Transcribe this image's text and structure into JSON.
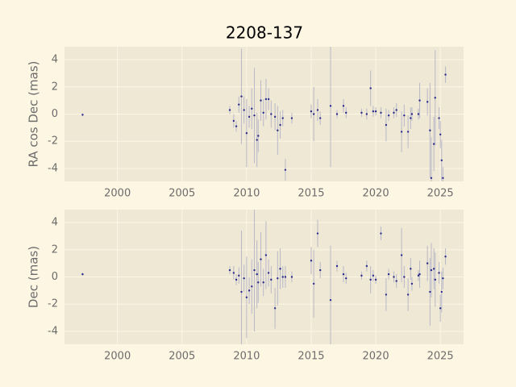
{
  "chart_data": [
    {
      "type": "scatter",
      "title": "2208-137",
      "ylabel": "RA cos Dec (mas)",
      "xlim": [
        1995.9,
        2026.8
      ],
      "ylim": [
        -4.95,
        4.95
      ],
      "xticks": [
        2000,
        2005,
        2010,
        2015,
        2020,
        2025
      ],
      "yticks": [
        -4,
        -2,
        0,
        2,
        4
      ],
      "grid": true,
      "series": [
        {
          "color": "#2b2b8c",
          "error_color": "#b8b8c8",
          "x": [
            1997.3,
            2008.7,
            2009.0,
            2009.2,
            2009.4,
            2009.6,
            2009.8,
            2010.0,
            2010.2,
            2010.4,
            2010.6,
            2010.8,
            2010.9,
            2011.1,
            2011.3,
            2011.5,
            2011.7,
            2011.9,
            2012.2,
            2012.4,
            2012.6,
            2012.8,
            2013.0,
            2013.5,
            2015.0,
            2015.2,
            2015.5,
            2015.7,
            2016.5,
            2017.0,
            2017.5,
            2017.7,
            2018.9,
            2019.3,
            2019.6,
            2019.8,
            2020.0,
            2020.4,
            2020.8,
            2021.0,
            2021.4,
            2021.6,
            2022.0,
            2022.2,
            2022.5,
            2022.7,
            2022.8,
            2023.3,
            2023.4,
            2024.0,
            2024.2,
            2024.3,
            2024.5,
            2024.6,
            2024.9,
            2025.0,
            2025.1,
            2025.2,
            2025.4
          ],
          "values": [
            -0.05,
            0.3,
            -0.5,
            -0.9,
            0.7,
            1.3,
            0.3,
            -1.4,
            -0.2,
            0.4,
            -0.1,
            -1.9,
            -1.6,
            1.0,
            0.1,
            1.1,
            1.1,
            0.0,
            -0.2,
            -1.2,
            -0.8,
            -0.3,
            -4.1,
            -0.3,
            0.2,
            0.0,
            0.3,
            -0.3,
            0.6,
            0.0,
            0.6,
            0.1,
            0.1,
            0.0,
            1.9,
            0.2,
            0.2,
            0.1,
            -0.8,
            -0.1,
            0.1,
            0.3,
            -1.3,
            -0.1,
            -1.3,
            -0.3,
            0.0,
            0.0,
            1.0,
            0.9,
            -1.2,
            -4.7,
            -2.2,
            1.2,
            -0.3,
            -1.5,
            -3.4,
            -4.7,
            2.9
          ],
          "errors": [
            0.1,
            0.3,
            0.5,
            0.4,
            0.6,
            3.5,
            1.0,
            2.5,
            0.8,
            1.5,
            3.5,
            2.0,
            1.2,
            1.5,
            1.0,
            1.5,
            0.8,
            1.0,
            1.0,
            1.8,
            1.0,
            0.6,
            0.8,
            0.4,
            0.5,
            2.0,
            0.8,
            0.5,
            4.5,
            0.3,
            0.5,
            0.4,
            0.3,
            0.4,
            1.3,
            0.4,
            0.3,
            0.4,
            1.2,
            0.4,
            0.4,
            0.5,
            1.5,
            0.8,
            1.2,
            0.8,
            0.5,
            0.4,
            1.3,
            1.0,
            3.5,
            3.0,
            2.0,
            3.5,
            0.8,
            1.0,
            1.5,
            0.8,
            0.6
          ]
        }
      ]
    },
    {
      "type": "scatter",
      "ylabel": "Dec (mas)",
      "xlim": [
        1995.9,
        2026.8
      ],
      "ylim": [
        -4.95,
        4.95
      ],
      "xticks": [
        2000,
        2005,
        2010,
        2015,
        2020,
        2025
      ],
      "yticks": [
        -4,
        -2,
        0,
        2,
        4
      ],
      "grid": true,
      "series": [
        {
          "color": "#2b2b8c",
          "error_color": "#b8b8c8",
          "x": [
            1997.3,
            2008.7,
            2009.0,
            2009.2,
            2009.4,
            2009.6,
            2009.8,
            2010.0,
            2010.2,
            2010.4,
            2010.6,
            2010.8,
            2010.9,
            2011.1,
            2011.3,
            2011.5,
            2011.7,
            2011.9,
            2012.2,
            2012.4,
            2012.6,
            2012.8,
            2013.0,
            2013.5,
            2015.0,
            2015.2,
            2015.5,
            2015.7,
            2016.5,
            2017.0,
            2017.5,
            2017.7,
            2018.9,
            2019.3,
            2019.6,
            2019.8,
            2020.0,
            2020.4,
            2020.8,
            2021.0,
            2021.4,
            2021.6,
            2022.0,
            2022.2,
            2022.5,
            2022.7,
            2022.8,
            2023.3,
            2023.4,
            2024.0,
            2024.2,
            2024.3,
            2024.5,
            2024.6,
            2024.9,
            2025.0,
            2025.1,
            2025.2,
            2025.4
          ],
          "values": [
            0.2,
            0.5,
            0.3,
            -0.2,
            0.1,
            -1.1,
            -0.1,
            -1.5,
            -1.0,
            -0.7,
            0.5,
            0.2,
            -0.4,
            1.3,
            -0.4,
            1.6,
            0.3,
            -0.2,
            -2.3,
            -0.1,
            0.6,
            0.0,
            0.0,
            0.0,
            1.2,
            -0.5,
            3.2,
            0.5,
            -1.7,
            0.8,
            0.2,
            -0.1,
            0.1,
            0.8,
            -0.2,
            0.1,
            -0.2,
            3.2,
            -1.3,
            0.2,
            0.0,
            -0.3,
            1.6,
            0.0,
            -1.3,
            0.6,
            -0.5,
            0.1,
            0.2,
            1.0,
            -1.1,
            0.5,
            0.6,
            -0.2,
            0.3,
            -2.3,
            -1.1,
            -0.1,
            1.5
          ],
          "errors": [
            0.1,
            0.3,
            0.5,
            0.4,
            0.6,
            4.5,
            1.0,
            3.0,
            1.0,
            2.0,
            4.5,
            2.5,
            1.5,
            2.0,
            1.0,
            2.5,
            1.0,
            1.0,
            1.5,
            2.0,
            1.5,
            0.8,
            0.8,
            0.4,
            1.0,
            2.5,
            1.0,
            0.6,
            4.0,
            0.4,
            0.6,
            0.4,
            0.3,
            0.4,
            1.0,
            0.4,
            0.3,
            0.5,
            1.2,
            0.4,
            0.4,
            0.5,
            2.0,
            0.8,
            1.2,
            0.8,
            0.5,
            0.4,
            1.0,
            1.3,
            2.5,
            2.0,
            1.5,
            2.0,
            0.8,
            1.0,
            1.5,
            0.8,
            0.6
          ]
        }
      ]
    }
  ]
}
